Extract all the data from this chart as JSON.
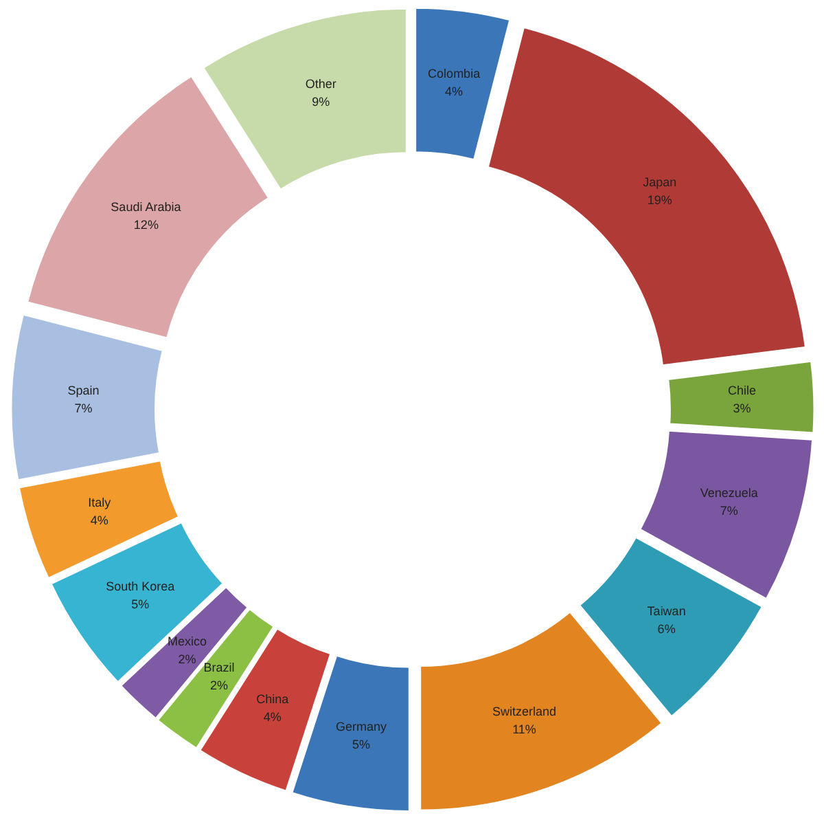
{
  "chart_data": {
    "type": "donut",
    "categories": [
      "Colombia",
      "Japan",
      "Chile",
      "Venezuela",
      "Taiwan",
      "Switzerland",
      "Germany",
      "China",
      "Brazil",
      "Mexico",
      "South Korea",
      "Italy",
      "Spain",
      "Saudi Arabia",
      "Other"
    ],
    "values": [
      4,
      19,
      3,
      7,
      6,
      11,
      5,
      4,
      2,
      2,
      5,
      4,
      7,
      12,
      9
    ],
    "value_labels": [
      "4%",
      "19%",
      "3%",
      "7%",
      "6%",
      "11%",
      "5%",
      "4%",
      "2%",
      "2%",
      "5%",
      "4%",
      "7%",
      "12%",
      "9%"
    ],
    "colors": [
      "#3b76b9",
      "#b03b36",
      "#7aa53c",
      "#7b57a2",
      "#2f9cb6",
      "#e2841f",
      "#3b76b9",
      "#c9413b",
      "#8cc045",
      "#7f5ba6",
      "#36b4d1",
      "#f39a2d",
      "#a9bfe2",
      "#dca6a8",
      "#c7daa9"
    ]
  }
}
